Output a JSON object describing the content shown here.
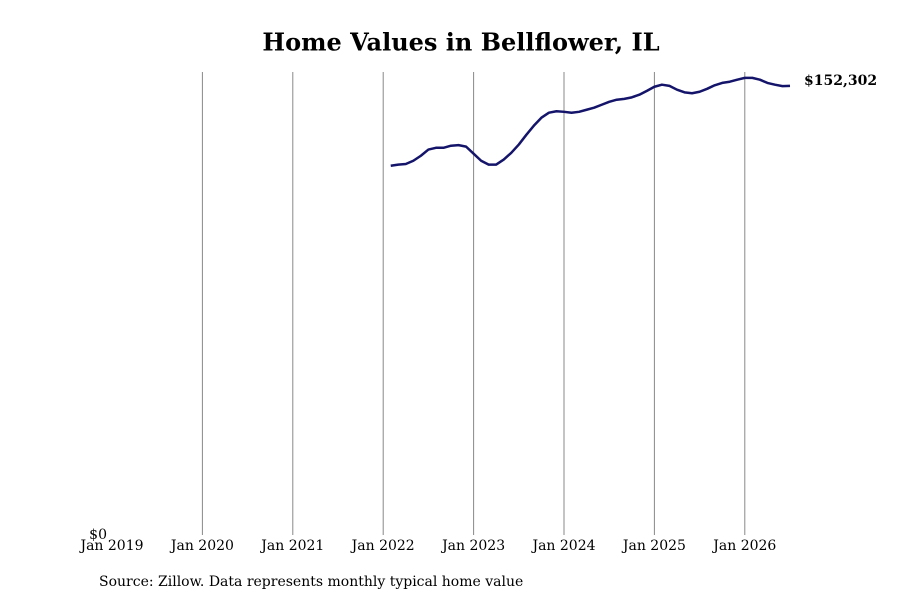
{
  "chart_data": {
    "type": "line",
    "title": "Home Values in Bellflower, IL",
    "source": "Source: Zillow. Data represents monthly typical home value",
    "color": "#14146b",
    "x": [
      "2022-02",
      "2022-03",
      "2022-04",
      "2022-05",
      "2022-06",
      "2022-07",
      "2022-08",
      "2022-09",
      "2022-10",
      "2022-11",
      "2022-12",
      "2023-01",
      "2023-02",
      "2023-03",
      "2023-04",
      "2023-05",
      "2023-06",
      "2023-07",
      "2023-08",
      "2023-09",
      "2023-10",
      "2023-11",
      "2023-12",
      "2024-01",
      "2024-02",
      "2024-03",
      "2024-04",
      "2024-05",
      "2024-06",
      "2024-07",
      "2024-08",
      "2024-09",
      "2024-10",
      "2024-11",
      "2024-12",
      "2025-01",
      "2025-02",
      "2025-03",
      "2025-04",
      "2025-05",
      "2025-06",
      "2025-07",
      "2025-08",
      "2025-09",
      "2025-10",
      "2025-11",
      "2025-12",
      "2026-01",
      "2026-02",
      "2026-03",
      "2026-04",
      "2026-05",
      "2026-06",
      "2026-07"
    ],
    "values": [
      125200,
      125600,
      125800,
      126900,
      128600,
      130700,
      131300,
      131300,
      132000,
      132200,
      131700,
      129300,
      126900,
      125600,
      125600,
      127300,
      129600,
      132400,
      135700,
      138800,
      141500,
      143200,
      143700,
      143500,
      143200,
      143500,
      144200,
      144900,
      145900,
      146900,
      147600,
      147900,
      148400,
      149300,
      150600,
      152000,
      152700,
      152300,
      151000,
      150100,
      149800,
      150300,
      151300,
      152500,
      153300,
      153700,
      154400,
      155000,
      155000,
      154400,
      153300,
      152700,
      152200,
      152302
    ],
    "value_labels": [
      null,
      null,
      null,
      null,
      null,
      null,
      null,
      null,
      null,
      null,
      null,
      null,
      null,
      null,
      null,
      null,
      null,
      null,
      null,
      null,
      null,
      null,
      null,
      null,
      null,
      null,
      null,
      null,
      null,
      null,
      null,
      null,
      null,
      null,
      null,
      null,
      null,
      null,
      null,
      null,
      null,
      null,
      null,
      null,
      null,
      null,
      null,
      null,
      null,
      null,
      null,
      null,
      null,
      "$152,302"
    ],
    "xlim": [
      "2019-01",
      "2026-07"
    ],
    "xticks": [
      {
        "value": "2019-01",
        "label": "Jan 2019"
      },
      {
        "value": "2020-01",
        "label": "Jan 2020"
      },
      {
        "value": "2021-01",
        "label": "Jan 2021"
      },
      {
        "value": "2022-01",
        "label": "Jan 2022"
      },
      {
        "value": "2023-01",
        "label": "Jan 2023"
      },
      {
        "value": "2024-01",
        "label": "Jan 2024"
      },
      {
        "value": "2025-01",
        "label": "Jan 2025"
      },
      {
        "value": "2026-01",
        "label": "Jan 2026"
      }
    ],
    "ylim": [
      0,
      157000
    ],
    "yticks": [
      {
        "value": 0,
        "label": "$0"
      }
    ],
    "grid": true
  }
}
